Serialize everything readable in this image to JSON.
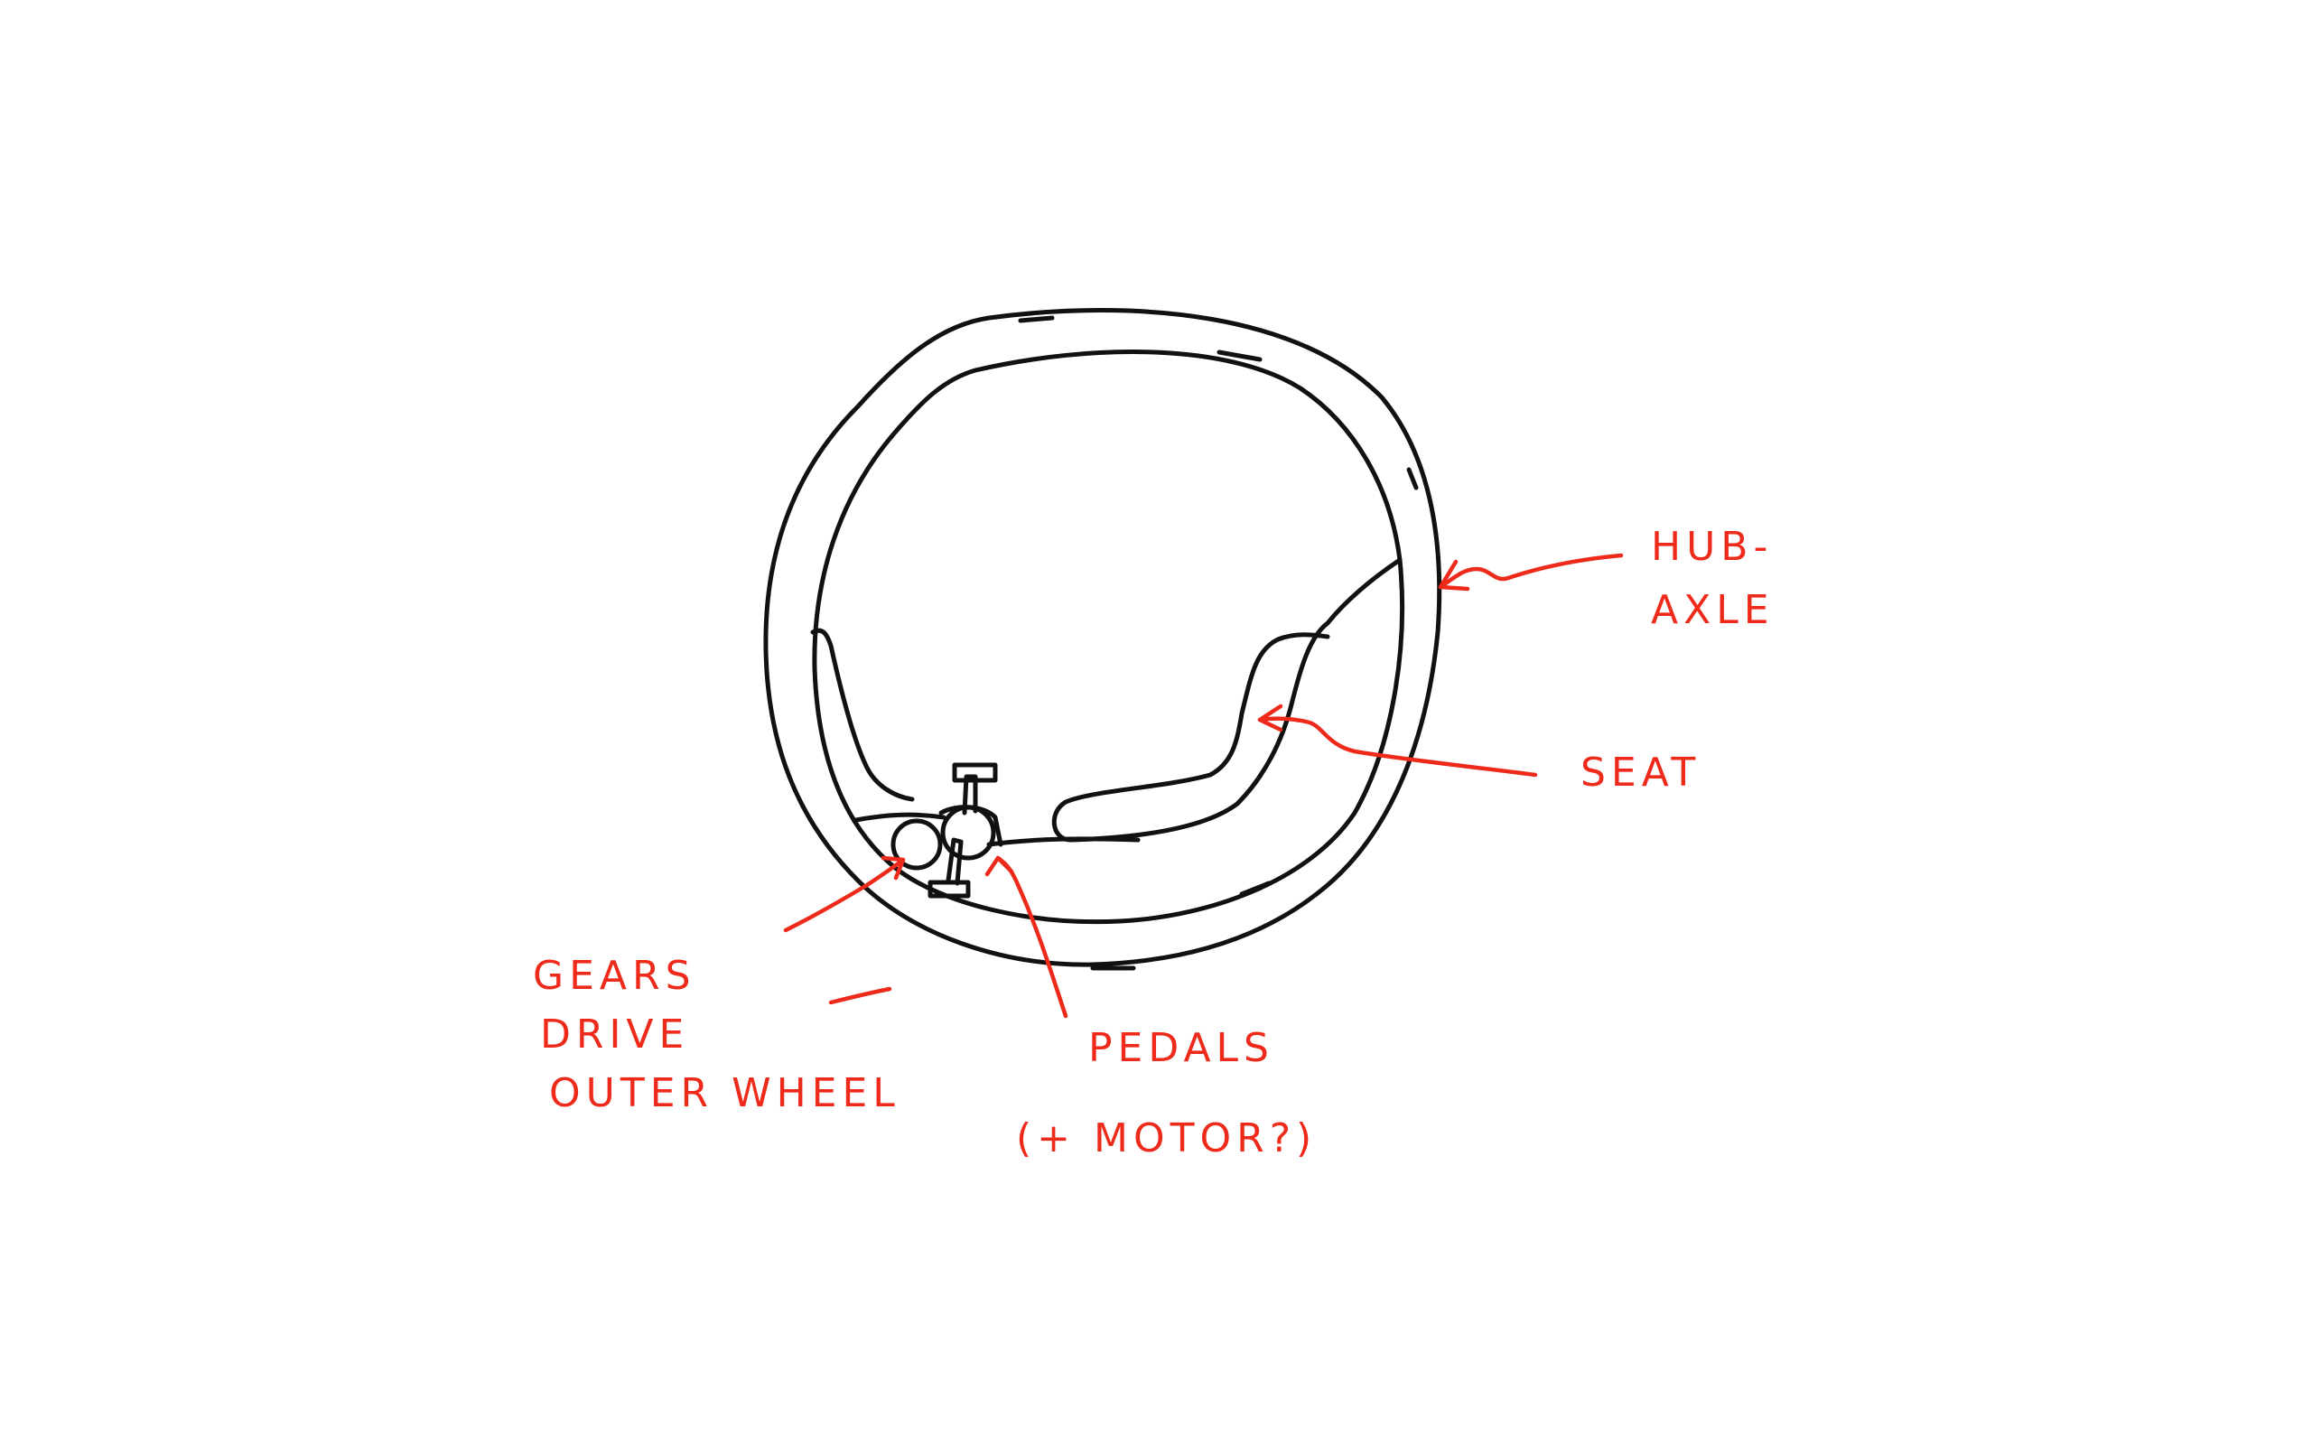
{
  "labels": {
    "hub_line1": "HUB-",
    "hub_line2": "AXLE",
    "seat": "SEAT",
    "gears_line1": "GEARS",
    "gears_line2": "DRIVE",
    "gears_line3": "OUTER WHEEL",
    "pedals_line1": "PEDALS",
    "pedals_line2": "(+ MOTOR?)"
  },
  "colors": {
    "ink": "#111111",
    "annotation": "#ee2a1b",
    "background": "#ffffff"
  }
}
